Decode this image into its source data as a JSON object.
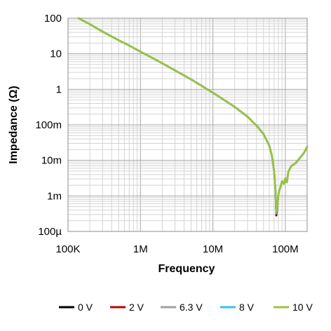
{
  "chart_data": {
    "type": "line",
    "xlabel": "Frequency",
    "ylabel": "Impedance (Ω)",
    "x_scale": "log",
    "y_scale": "log",
    "xlim": [
      100000,
      200000000
    ],
    "ylim": [
      0.0001,
      100
    ],
    "grid": true,
    "legend_placement": "bottom",
    "x_ticks": [
      {
        "value": 100000,
        "label": "100K"
      },
      {
        "value": 1000000,
        "label": "1M"
      },
      {
        "value": 10000000,
        "label": "10M"
      },
      {
        "value": 100000000,
        "label": "100M"
      }
    ],
    "y_ticks": [
      {
        "value": 100,
        "label": "100"
      },
      {
        "value": 10,
        "label": "10"
      },
      {
        "value": 1,
        "label": "1"
      },
      {
        "value": 0.1,
        "label": "100m"
      },
      {
        "value": 0.01,
        "label": "10m"
      },
      {
        "value": 0.001,
        "label": "1m"
      },
      {
        "value": 0.0001,
        "label": "100µ"
      }
    ],
    "x": [
      140000,
      200000,
      300000,
      500000,
      700000,
      1000000,
      1500000,
      2000000,
      3000000,
      5000000,
      7000000,
      10000000,
      15000000,
      20000000,
      30000000,
      40000000,
      50000000,
      60000000,
      65000000,
      70000000,
      73000000,
      75000000,
      77000000,
      80000000,
      85000000,
      90000000,
      95000000,
      100000000,
      105000000,
      110000000,
      120000000,
      140000000,
      160000000,
      180000000,
      200000000
    ],
    "series": [
      {
        "name": "0 V",
        "color": "#000000",
        "values": [
          100,
          68,
          42,
          24,
          17,
          11.5,
          7.4,
          5.4,
          3.4,
          1.9,
          1.25,
          0.8,
          0.47,
          0.32,
          0.17,
          0.095,
          0.055,
          0.026,
          0.014,
          0.005,
          0.0015,
          0.00028,
          0.0004,
          0.0011,
          0.0017,
          0.0026,
          0.0022,
          0.0031,
          0.0024,
          0.0048,
          0.0068,
          0.0085,
          0.012,
          0.016,
          0.024
        ]
      },
      {
        "name": "2 V",
        "color": "#c00000",
        "values": [
          100,
          68,
          42,
          24,
          17,
          11.5,
          7.4,
          5.4,
          3.4,
          1.9,
          1.25,
          0.8,
          0.47,
          0.32,
          0.17,
          0.095,
          0.055,
          0.026,
          0.014,
          0.005,
          0.0015,
          0.0003,
          0.0004,
          0.0011,
          0.0017,
          0.0026,
          0.0022,
          0.0031,
          0.0024,
          0.0048,
          0.0068,
          0.0085,
          0.012,
          0.016,
          0.024
        ]
      },
      {
        "name": "6.3 V",
        "color": "#a0a0a0",
        "values": [
          100,
          68,
          42,
          24,
          17,
          11.5,
          7.4,
          5.4,
          3.4,
          1.9,
          1.25,
          0.8,
          0.47,
          0.32,
          0.17,
          0.095,
          0.055,
          0.026,
          0.014,
          0.005,
          0.0015,
          0.00032,
          0.00042,
          0.0011,
          0.0017,
          0.0026,
          0.0022,
          0.0031,
          0.0024,
          0.0048,
          0.0068,
          0.0085,
          0.012,
          0.016,
          0.024
        ]
      },
      {
        "name": "8 V",
        "color": "#33c3e8",
        "values": [
          100,
          68,
          42,
          24,
          17,
          11.5,
          7.4,
          5.4,
          3.4,
          1.9,
          1.25,
          0.8,
          0.47,
          0.32,
          0.17,
          0.095,
          0.055,
          0.026,
          0.014,
          0.005,
          0.0015,
          0.00034,
          0.00044,
          0.0011,
          0.0017,
          0.0026,
          0.0022,
          0.0031,
          0.0024,
          0.0048,
          0.0068,
          0.0085,
          0.012,
          0.016,
          0.024
        ]
      },
      {
        "name": "10 V",
        "color": "#9bc43a",
        "values": [
          100,
          68,
          42,
          24,
          17,
          11.5,
          7.4,
          5.4,
          3.4,
          1.9,
          1.25,
          0.8,
          0.47,
          0.32,
          0.17,
          0.095,
          0.055,
          0.026,
          0.014,
          0.005,
          0.0015,
          0.00036,
          0.00046,
          0.0011,
          0.0017,
          0.0026,
          0.0022,
          0.0031,
          0.0024,
          0.0048,
          0.0068,
          0.0085,
          0.012,
          0.016,
          0.024
        ]
      }
    ]
  }
}
